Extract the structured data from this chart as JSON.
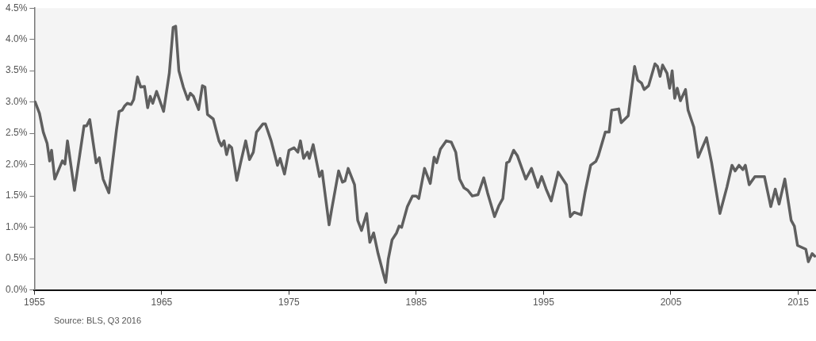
{
  "chart_data": {
    "type": "line",
    "annotations": [
      "Source: BLS, Q3 2016"
    ],
    "xlim": [
      1955,
      2016.4
    ],
    "xticks": [
      1955,
      1965,
      1975,
      1985,
      1995,
      2005,
      2015
    ],
    "ylim": [
      0,
      4.5
    ],
    "yticks": [
      {
        "value": 0,
        "label": "0.0%"
      },
      {
        "value": 0.5,
        "label": "0.5%"
      },
      {
        "value": 1,
        "label": "1.0%"
      },
      {
        "value": 1.5,
        "label": "1.5%"
      },
      {
        "value": 2,
        "label": "2.0%"
      },
      {
        "value": 2.5,
        "label": "2.5%"
      },
      {
        "value": 3,
        "label": "3.0%"
      },
      {
        "value": 3.5,
        "label": "3.5%"
      },
      {
        "value": 4,
        "label": "4.0%"
      },
      {
        "value": 4.5,
        "label": "4.5%"
      }
    ],
    "grid": false,
    "legend": false,
    "marker": "none",
    "line_style": "solid",
    "series": [
      {
        "color": "#5f5f5f",
        "x": [
          1955.06,
          1955.4,
          1955.7,
          1956.0,
          1956.2,
          1956.35,
          1956.6,
          1957.2,
          1957.4,
          1957.6,
          1958.15,
          1958.9,
          1959.1,
          1959.35,
          1959.85,
          1960.1,
          1960.4,
          1960.85,
          1961.45,
          1961.65,
          1961.9,
          1962.1,
          1962.3,
          1962.6,
          1962.8,
          1963.1,
          1963.35,
          1963.65,
          1963.9,
          1964.1,
          1964.3,
          1964.6,
          1965.15,
          1965.6,
          1965.9,
          1966.1,
          1966.35,
          1966.7,
          1967.05,
          1967.25,
          1967.5,
          1967.9,
          1968.2,
          1968.4,
          1968.6,
          1969.05,
          1969.5,
          1969.7,
          1969.9,
          1970.1,
          1970.3,
          1970.5,
          1970.9,
          1971.2,
          1971.6,
          1971.9,
          1972.2,
          1972.45,
          1972.95,
          1973.15,
          1973.6,
          1974.1,
          1974.3,
          1974.65,
          1975.0,
          1975.4,
          1975.7,
          1975.9,
          1976.15,
          1976.45,
          1976.6,
          1976.9,
          1977.4,
          1977.6,
          1978.15,
          1978.35,
          1978.9,
          1979.2,
          1979.4,
          1979.65,
          1980.15,
          1980.4,
          1980.7,
          1981.1,
          1981.35,
          1981.65,
          1982.0,
          1982.4,
          1982.6,
          1982.8,
          1983.1,
          1983.45,
          1983.65,
          1983.85,
          1984.3,
          1984.7,
          1985.0,
          1985.2,
          1985.65,
          1986.1,
          1986.4,
          1986.6,
          1986.9,
          1987.35,
          1987.75,
          1988.1,
          1988.4,
          1988.75,
          1989.05,
          1989.4,
          1989.85,
          1990.3,
          1990.6,
          1991.15,
          1991.5,
          1991.8,
          1992.1,
          1992.3,
          1992.65,
          1992.95,
          1993.3,
          1993.6,
          1994.05,
          1994.55,
          1994.85,
          1995.2,
          1995.6,
          1996.15,
          1996.8,
          1997.1,
          1997.4,
          1997.95,
          1998.25,
          1998.7,
          1999.1,
          1999.3,
          1999.85,
          2000.15,
          2000.35,
          2000.9,
          2001.1,
          2001.65,
          2002.15,
          2002.4,
          2002.7,
          2002.9,
          2003.25,
          2003.75,
          2003.95,
          2004.15,
          2004.35,
          2004.7,
          2004.9,
          2005.1,
          2005.3,
          2005.5,
          2005.75,
          2006.15,
          2006.35,
          2006.8,
          2007.15,
          2007.8,
          2008.2,
          2008.85,
          2009.4,
          2009.8,
          2010.05,
          2010.35,
          2010.65,
          2010.85,
          2011.15,
          2011.6,
          2012.35,
          2012.85,
          2013.2,
          2013.5,
          2013.95,
          2014.45,
          2014.7,
          2014.95,
          2015.6,
          2015.8,
          2016.1,
          2016.3
        ],
        "values": [
          3.0,
          2.82,
          2.52,
          2.34,
          2.06,
          2.23,
          1.77,
          2.06,
          2.01,
          2.38,
          1.59,
          2.62,
          2.62,
          2.72,
          2.03,
          2.11,
          1.77,
          1.55,
          2.56,
          2.85,
          2.87,
          2.94,
          2.98,
          2.96,
          3.04,
          3.4,
          3.24,
          3.25,
          2.91,
          3.09,
          2.98,
          3.17,
          2.85,
          3.46,
          4.19,
          4.21,
          3.5,
          3.24,
          3.04,
          3.14,
          3.09,
          2.88,
          3.26,
          3.24,
          2.8,
          2.73,
          2.38,
          2.3,
          2.38,
          2.16,
          2.31,
          2.27,
          1.75,
          2.03,
          2.38,
          2.08,
          2.2,
          2.52,
          2.65,
          2.65,
          2.38,
          1.99,
          2.1,
          1.85,
          2.23,
          2.27,
          2.2,
          2.38,
          2.1,
          2.2,
          2.1,
          2.32,
          1.81,
          1.9,
          1.04,
          1.28,
          1.9,
          1.72,
          1.74,
          1.94,
          1.68,
          1.11,
          0.95,
          1.22,
          0.76,
          0.91,
          0.58,
          0.27,
          0.12,
          0.49,
          0.8,
          0.91,
          1.02,
          1.0,
          1.33,
          1.5,
          1.5,
          1.46,
          1.94,
          1.7,
          2.12,
          2.03,
          2.25,
          2.38,
          2.36,
          2.2,
          1.77,
          1.63,
          1.59,
          1.5,
          1.52,
          1.79,
          1.55,
          1.17,
          1.35,
          1.46,
          2.03,
          2.05,
          2.23,
          2.14,
          1.94,
          1.77,
          1.94,
          1.64,
          1.81,
          1.61,
          1.42,
          1.88,
          1.68,
          1.17,
          1.24,
          1.2,
          1.55,
          1.99,
          2.05,
          2.14,
          2.52,
          2.52,
          2.87,
          2.89,
          2.67,
          2.78,
          3.57,
          3.35,
          3.3,
          3.2,
          3.26,
          3.61,
          3.57,
          3.41,
          3.59,
          3.46,
          3.22,
          3.5,
          3.06,
          3.22,
          3.02,
          3.2,
          2.87,
          2.6,
          2.12,
          2.43,
          2.03,
          1.22,
          1.64,
          1.99,
          1.9,
          1.99,
          1.92,
          1.99,
          1.68,
          1.81,
          1.81,
          1.33,
          1.61,
          1.37,
          1.77,
          1.11,
          1.02,
          0.71,
          0.65,
          0.45,
          0.58,
          0.54
        ]
      }
    ]
  }
}
